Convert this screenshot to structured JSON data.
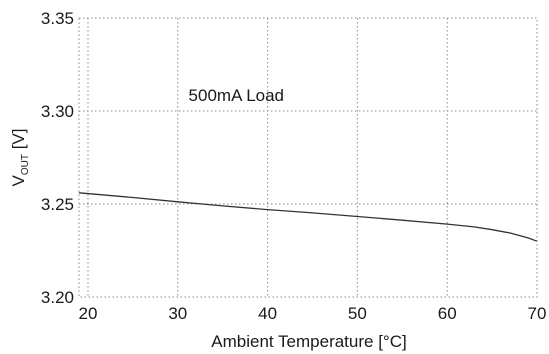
{
  "chart_data": {
    "type": "line",
    "title": "",
    "xlabel": "Ambient Temperature [°C]",
    "ylabel": {
      "main": "V",
      "subscript": "OUT",
      "unit": " [V]"
    },
    "annotation": "500mA Load",
    "xlim": [
      19,
      70
    ],
    "ylim": [
      3.2,
      3.35
    ],
    "x_ticks": [
      20,
      30,
      40,
      50,
      60,
      70
    ],
    "x_tick_labels": [
      "20",
      "30",
      "40",
      "50",
      "60",
      "70"
    ],
    "y_ticks": [
      3.2,
      3.25,
      3.3,
      3.35
    ],
    "y_tick_labels": [
      "3.20",
      "3.25",
      "3.30",
      "3.35"
    ],
    "grid": true,
    "series": [
      {
        "x": [
          19,
          25,
          30,
          35,
          40,
          45,
          50,
          55,
          60,
          63,
          65,
          67,
          69,
          70
        ],
        "y": [
          3.256,
          3.2535,
          3.2512,
          3.249,
          3.247,
          3.2452,
          3.2433,
          3.2413,
          3.2392,
          3.2377,
          3.2362,
          3.2344,
          3.2318,
          3.23
        ],
        "color": "#333333"
      }
    ]
  }
}
